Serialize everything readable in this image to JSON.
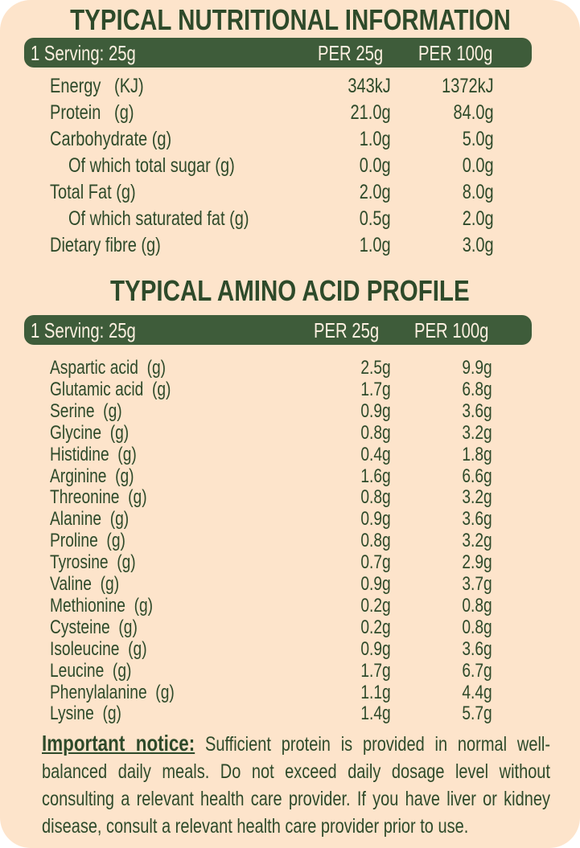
{
  "nutrition": {
    "title": "TYPICAL NUTRITIONAL INFORMATION",
    "header": {
      "serving": "1 Serving: 25g",
      "col1": "PER 25g",
      "col2": "PER 100g"
    },
    "rows": [
      {
        "label": "Energy   (KJ)",
        "per25": "343kJ",
        "per100": "1372kJ",
        "indent": false
      },
      {
        "label": "Protein   (g)",
        "per25": "21.0g",
        "per100": "84.0g",
        "indent": false
      },
      {
        "label": "Carbohydrate (g)",
        "per25": "1.0g",
        "per100": "5.0g",
        "indent": false
      },
      {
        "label": "Of which total sugar (g)",
        "per25": "0.0g",
        "per100": "0.0g",
        "indent": true
      },
      {
        "label": "Total Fat (g)",
        "per25": "2.0g",
        "per100": "8.0g",
        "indent": false
      },
      {
        "label": "Of which saturated fat (g)",
        "per25": "0.5g",
        "per100": "2.0g",
        "indent": true
      },
      {
        "label": "Dietary fibre (g)",
        "per25": "1.0g",
        "per100": "3.0g",
        "indent": false
      }
    ]
  },
  "amino": {
    "title": "TYPICAL AMINO ACID PROFILE",
    "header": {
      "serving": "1 Serving: 25g",
      "col1": "PER 25g",
      "col2": "PER 100g"
    },
    "rows": [
      {
        "label": "Aspartic acid  (g)",
        "per25": "2.5g",
        "per100": "9.9g"
      },
      {
        "label": "Glutamic acid  (g)",
        "per25": "1.7g",
        "per100": "6.8g"
      },
      {
        "label": "Serine  (g)",
        "per25": "0.9g",
        "per100": "3.6g"
      },
      {
        "label": "Glycine  (g)",
        "per25": "0.8g",
        "per100": "3.2g"
      },
      {
        "label": "Histidine  (g)",
        "per25": "0.4g",
        "per100": "1.8g"
      },
      {
        "label": "Arginine  (g)",
        "per25": "1.6g",
        "per100": "6.6g"
      },
      {
        "label": "Threonine  (g)",
        "per25": "0.8g",
        "per100": "3.2g"
      },
      {
        "label": "Alanine  (g)",
        "per25": "0.9g",
        "per100": "3.6g"
      },
      {
        "label": "Proline  (g)",
        "per25": "0.8g",
        "per100": "3.2g"
      },
      {
        "label": "Tyrosine  (g)",
        "per25": "0.7g",
        "per100": "2.9g"
      },
      {
        "label": "Valine  (g)",
        "per25": "0.9g",
        "per100": "3.7g"
      },
      {
        "label": "Methionine  (g)",
        "per25": "0.2g",
        "per100": "0.8g"
      },
      {
        "label": "Cysteine  (g)",
        "per25": "0.2g",
        "per100": "0.8g"
      },
      {
        "label": "Isoleucine  (g)",
        "per25": "0.9g",
        "per100": "3.6g"
      },
      {
        "label": "Leucine  (g)",
        "per25": "1.7g",
        "per100": "6.7g"
      },
      {
        "label": "Phenylalanine  (g)",
        "per25": "1.1g",
        "per100": "4.4g"
      },
      {
        "label": "Lysine  (g)",
        "per25": "1.4g",
        "per100": "5.7g"
      }
    ]
  },
  "notice": {
    "heading": "Important notice:",
    "text": " Sufficient protein is provided in normal well-balanced daily meals. Do not exceed daily dosage level without consulting a relevant health care provider. If you have liver or kidney disease, consult a relevant health care provider prior to use."
  },
  "colors": {
    "background": "#fde4cb",
    "text": "#2e4a2a",
    "band": "#3e5c3a"
  }
}
